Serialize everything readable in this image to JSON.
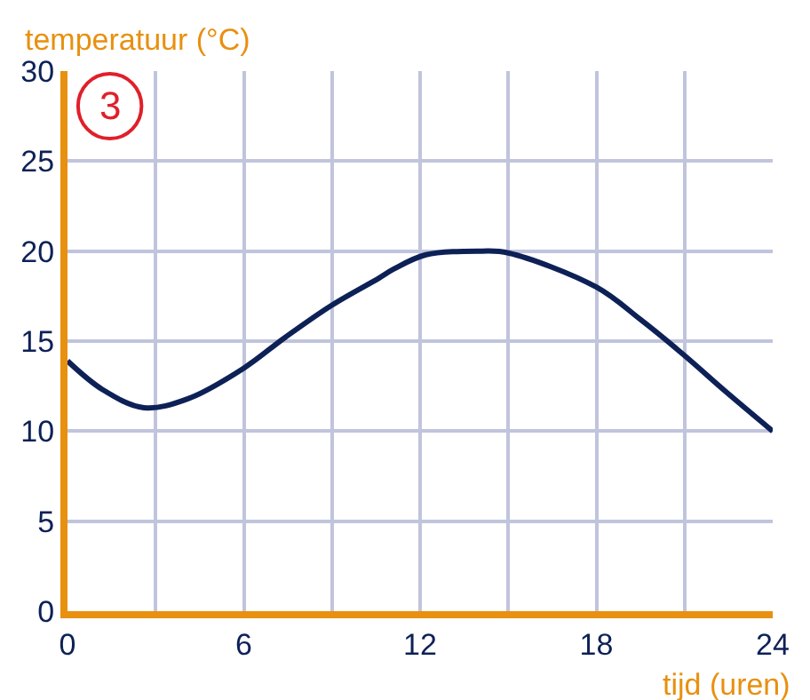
{
  "chart_data": {
    "type": "line",
    "xlabel": "tijd (uren)",
    "ylabel": "temperatuur (°C)",
    "annotations": [
      "3"
    ],
    "x": [
      0,
      1.2,
      2.6,
      4.1,
      6,
      7.4,
      9,
      10.6,
      11.1,
      12.2,
      14.1,
      15,
      18,
      19.5,
      21,
      22.4,
      24
    ],
    "series": [
      {
        "color": "#0d2157",
        "values": [
          13.9,
          12.3,
          11.3,
          11.8,
          13.5,
          15.2,
          17.0,
          18.5,
          19.0,
          19.8,
          20.0,
          19.9,
          18.0,
          16.2,
          14.2,
          12.2,
          10.0
        ]
      }
    ],
    "xlim": [
      0,
      24
    ],
    "ylim": [
      0,
      30
    ],
    "xticks": [
      0,
      {
        "value": 3,
        "label": null
      },
      6,
      {
        "value": 9,
        "label": null
      },
      12,
      {
        "value": 15,
        "label": null
      },
      18,
      {
        "value": 21,
        "label": null
      },
      24
    ],
    "yticks": [
      0,
      5,
      10,
      15,
      20,
      25,
      30
    ],
    "grid": true,
    "marker": "none",
    "line_style": "solid",
    "legend": false
  }
}
